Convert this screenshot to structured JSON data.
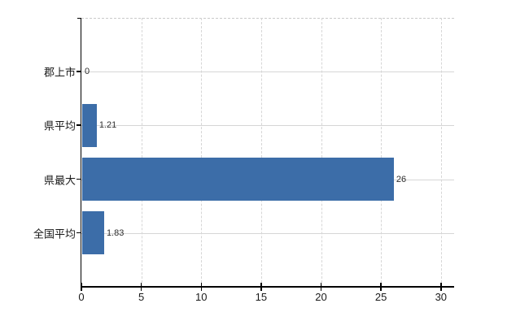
{
  "chart_data": {
    "type": "bar",
    "orientation": "horizontal",
    "title": "",
    "xlabel": "",
    "ylabel": "",
    "categories": [
      "郡上市",
      "県平均",
      "県最大",
      "全国平均"
    ],
    "values": [
      0,
      1.21,
      26,
      1.83
    ],
    "value_labels": [
      "0",
      "1.21",
      "26",
      "1.83"
    ],
    "xlim": [
      0,
      31.1
    ],
    "xticks": [
      0,
      5,
      10,
      15,
      20,
      25,
      30
    ],
    "xtick_labels": [
      "0",
      "5",
      "10",
      "15",
      "20",
      "25",
      "30"
    ],
    "grid": true,
    "legend": false,
    "colors": {
      "bar": "#3c6da8",
      "grid": "#d6d6d6",
      "top_border": "#c9c9c9",
      "axis": "#000000",
      "tick_label": "#1a1a1a",
      "value_label": "#2e2e2e",
      "background": "#ffffff"
    }
  }
}
